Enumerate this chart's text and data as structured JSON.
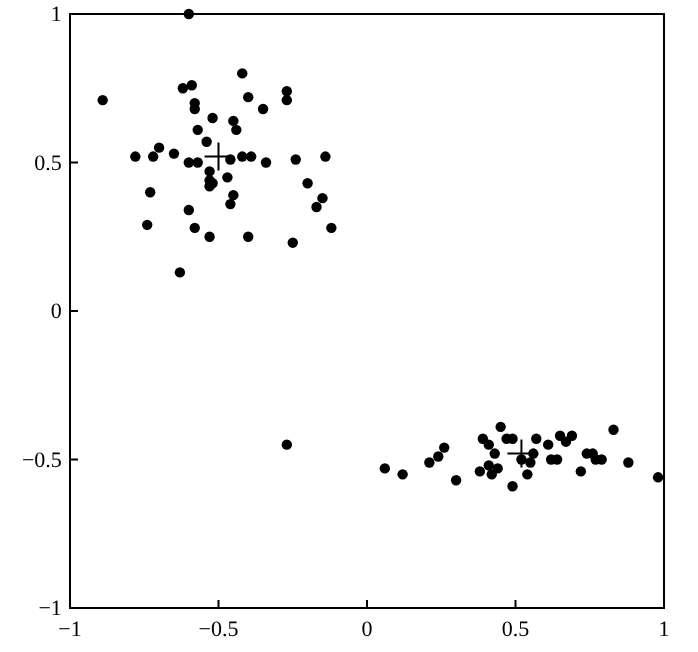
{
  "chart_data": {
    "type": "scatter",
    "marker": "circle",
    "xlim": [
      -1,
      1
    ],
    "ylim": [
      -1,
      1
    ],
    "xticks": [
      {
        "value": -1,
        "label": "−1"
      },
      {
        "value": -0.5,
        "label": "−0.5"
      },
      0,
      0.5,
      1
    ],
    "yticks": [
      {
        "value": -1,
        "label": "−1"
      },
      {
        "value": -0.5,
        "label": "−0.5"
      },
      0,
      0.5,
      1
    ],
    "series": [
      {
        "color": "#000000",
        "x": [
          -0.6,
          -0.89,
          -0.42,
          -0.62,
          -0.59,
          -0.58,
          -0.58,
          -0.45,
          -0.52,
          -0.4,
          -0.35,
          -0.27,
          -0.27,
          -0.57,
          -0.54,
          -0.44,
          -0.7,
          -0.78,
          -0.72,
          -0.65,
          -0.6,
          -0.57,
          -0.46,
          -0.42,
          -0.39,
          -0.34,
          -0.24,
          -0.14,
          -0.53,
          -0.47,
          -0.53,
          -0.52,
          -0.53,
          -0.2,
          -0.73,
          -0.45,
          -0.46,
          -0.15,
          -0.6,
          -0.17,
          -0.74,
          -0.12,
          -0.58,
          -0.53,
          -0.4,
          -0.25,
          -0.63,
          -0.27,
          0.06,
          0.12,
          0.21,
          0.24,
          0.26,
          0.3,
          0.45,
          0.39,
          0.41,
          0.47,
          0.49,
          0.38,
          0.42,
          0.41,
          0.44,
          0.43,
          0.49,
          0.54,
          0.52,
          0.56,
          0.55,
          0.57,
          0.61,
          0.62,
          0.65,
          0.67,
          0.69,
          0.64,
          0.72,
          0.74,
          0.76,
          0.77,
          0.79,
          0.83,
          0.88,
          0.98
        ],
        "values": [
          1.0,
          0.71,
          0.8,
          0.75,
          0.76,
          0.7,
          0.68,
          0.64,
          0.65,
          0.72,
          0.68,
          0.74,
          0.71,
          0.61,
          0.57,
          0.61,
          0.55,
          0.52,
          0.52,
          0.53,
          0.5,
          0.5,
          0.51,
          0.52,
          0.52,
          0.5,
          0.51,
          0.52,
          0.47,
          0.45,
          0.44,
          0.43,
          0.42,
          0.43,
          0.4,
          0.39,
          0.36,
          0.38,
          0.34,
          0.35,
          0.29,
          0.28,
          0.28,
          0.25,
          0.25,
          0.23,
          0.13,
          -0.45,
          -0.53,
          -0.55,
          -0.51,
          -0.49,
          -0.46,
          -0.57,
          -0.39,
          -0.43,
          -0.45,
          -0.43,
          -0.43,
          -0.54,
          -0.55,
          -0.52,
          -0.53,
          -0.48,
          -0.59,
          -0.55,
          -0.5,
          -0.48,
          -0.51,
          -0.43,
          -0.45,
          -0.5,
          -0.42,
          -0.44,
          -0.42,
          -0.5,
          -0.54,
          -0.48,
          -0.48,
          -0.5,
          -0.5,
          -0.4,
          -0.51,
          -0.56
        ]
      },
      {
        "color": "#000000",
        "marker": "cross",
        "x": [
          -0.5,
          0.52
        ],
        "values": [
          0.52,
          -0.48
        ]
      }
    ]
  }
}
